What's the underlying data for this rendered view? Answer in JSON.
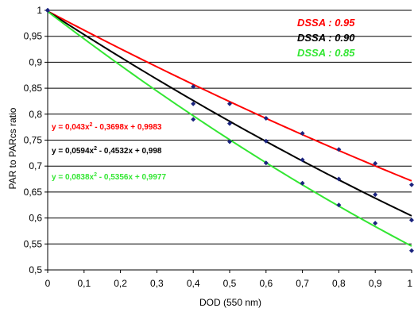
{
  "chart_data": {
    "type": "scatter",
    "title": "",
    "xlabel": "DOD (550 nm)",
    "ylabel": "PAR to PARcs ratio",
    "xlim": [
      0,
      1
    ],
    "ylim": [
      0.5,
      1
    ],
    "x_ticks": [
      "0",
      "0,1",
      "0,2",
      "0,3",
      "0,4",
      "0,5",
      "0,6",
      "0,7",
      "0,8",
      "0,9",
      "1"
    ],
    "y_ticks": [
      "0,5",
      "0,55",
      "0,6",
      "0,65",
      "0,7",
      "0,75",
      "0,8",
      "0,85",
      "0,9",
      "0,95",
      "1"
    ],
    "grid": "horizontal",
    "legend_position": "top-right",
    "series": [
      {
        "name": "DSSA : 0.95",
        "color": "#ff0000",
        "points": [
          [
            0,
            1.0
          ],
          [
            0.4,
            0.853
          ],
          [
            0.5,
            0.82
          ],
          [
            0.6,
            0.792
          ],
          [
            0.7,
            0.763
          ],
          [
            0.8,
            0.732
          ],
          [
            0.9,
            0.705
          ],
          [
            1.0,
            0.664
          ]
        ],
        "trendline": {
          "a": 0.043,
          "b": -0.3698,
          "c": 0.9983
        },
        "equation": {
          "pre": "y = 0,043x",
          "exp": "2",
          "post": " - 0,3698x + 0,9983"
        }
      },
      {
        "name": "DSSA : 0.90",
        "color": "#000000",
        "points": [
          [
            0,
            1.0
          ],
          [
            0.4,
            0.82
          ],
          [
            0.5,
            0.782
          ],
          [
            0.6,
            0.748
          ],
          [
            0.7,
            0.712
          ],
          [
            0.8,
            0.675
          ],
          [
            0.9,
            0.645
          ],
          [
            1.0,
            0.596
          ]
        ],
        "trendline": {
          "a": 0.0594,
          "b": -0.4532,
          "c": 0.998
        },
        "equation": {
          "pre": "y = 0,0594x",
          "exp": "2",
          "post": " - 0,4532x + 0,998"
        }
      },
      {
        "name": "DSSA : 0.85",
        "color": "#33e633",
        "points": [
          [
            0,
            1.0
          ],
          [
            0.4,
            0.79
          ],
          [
            0.5,
            0.747
          ],
          [
            0.6,
            0.706
          ],
          [
            0.7,
            0.667
          ],
          [
            0.8,
            0.625
          ],
          [
            0.9,
            0.59
          ],
          [
            1.0,
            0.537
          ]
        ],
        "trendline": {
          "a": 0.0838,
          "b": -0.5356,
          "c": 0.9977
        },
        "equation": {
          "pre": "y = 0,0838x",
          "exp": "2",
          "post": " - 0,5356x + 0,9977"
        }
      }
    ],
    "marker_color": "#1a237e"
  }
}
